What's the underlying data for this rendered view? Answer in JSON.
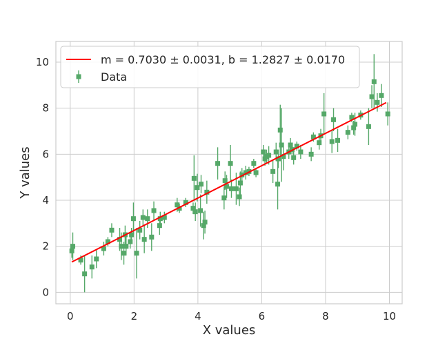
{
  "chart_data": {
    "type": "scatter",
    "xlabel": "X values",
    "ylabel": "Y values",
    "xlim": [
      -0.45,
      10.4
    ],
    "ylim": [
      -0.5,
      10.9
    ],
    "xticks": [
      "0",
      "2",
      "4",
      "6",
      "8",
      "10"
    ],
    "yticks": [
      "0",
      "2",
      "4",
      "6",
      "8",
      "10"
    ],
    "grid": true,
    "legend_placement": "upper-left",
    "colors": {
      "data": "#55a868",
      "fit": "#ff0000",
      "grid": "#cccccc",
      "frame": "#cccccc"
    },
    "fit": {
      "label": "m = 0.7030 ± 0.0031, b = 1.2827 ± 0.0170",
      "slope": 0.703,
      "intercept": 1.2827,
      "x_range": [
        0.05,
        9.9
      ]
    },
    "series": [
      {
        "name": "Data",
        "points": [
          [
            0.05,
            1.8,
            0.3
          ],
          [
            0.08,
            2.0,
            0.6
          ],
          [
            0.33,
            1.4,
            0.2
          ],
          [
            0.45,
            0.8,
            0.8
          ],
          [
            0.68,
            1.1,
            0.5
          ],
          [
            0.82,
            1.45,
            0.4
          ],
          [
            1.05,
            1.9,
            0.3
          ],
          [
            1.18,
            2.2,
            0.2
          ],
          [
            1.3,
            2.7,
            0.3
          ],
          [
            1.55,
            2.3,
            0.5
          ],
          [
            1.6,
            2.0,
            0.6
          ],
          [
            1.68,
            1.7,
            0.5
          ],
          [
            1.72,
            2.5,
            0.4
          ],
          [
            1.75,
            2.0,
            0.4
          ],
          [
            1.88,
            2.2,
            0.3
          ],
          [
            1.92,
            2.5,
            0.3
          ],
          [
            1.98,
            3.2,
            0.7
          ],
          [
            2.08,
            1.7,
            1.1
          ],
          [
            2.18,
            2.7,
            0.4
          ],
          [
            2.28,
            3.25,
            0.35
          ],
          [
            2.32,
            2.3,
            0.6
          ],
          [
            2.42,
            3.2,
            0.4
          ],
          [
            2.55,
            2.4,
            0.6
          ],
          [
            2.62,
            3.55,
            0.4
          ],
          [
            2.8,
            2.9,
            0.4
          ],
          [
            2.82,
            3.2,
            0.3
          ],
          [
            2.95,
            3.25,
            0.25
          ],
          [
            3.35,
            3.8,
            0.3
          ],
          [
            3.42,
            3.65,
            0.2
          ],
          [
            3.62,
            3.9,
            0.2
          ],
          [
            3.85,
            3.65,
            0.25
          ],
          [
            3.88,
            4.95,
            1.0
          ],
          [
            3.92,
            3.5,
            0.4
          ],
          [
            3.98,
            4.55,
            0.6
          ],
          [
            4.08,
            3.55,
            0.7
          ],
          [
            4.1,
            4.7,
            0.4
          ],
          [
            4.18,
            2.9,
            0.6
          ],
          [
            4.22,
            3.05,
            0.5
          ],
          [
            4.28,
            4.35,
            0.5
          ],
          [
            4.62,
            5.6,
            0.7
          ],
          [
            4.82,
            4.1,
            0.5
          ],
          [
            4.85,
            4.85,
            0.4
          ],
          [
            4.9,
            4.6,
            0.5
          ],
          [
            5.02,
            5.6,
            0.8
          ],
          [
            5.05,
            4.5,
            0.4
          ],
          [
            5.2,
            4.5,
            0.7
          ],
          [
            5.3,
            4.15,
            0.4
          ],
          [
            5.33,
            4.75,
            0.5
          ],
          [
            5.38,
            5.1,
            0.3
          ],
          [
            5.5,
            5.2,
            0.3
          ],
          [
            5.6,
            5.25,
            0.2
          ],
          [
            5.75,
            5.6,
            0.2
          ],
          [
            5.82,
            5.2,
            0.2
          ],
          [
            6.05,
            6.1,
            0.3
          ],
          [
            6.1,
            5.8,
            0.3
          ],
          [
            6.15,
            5.9,
            0.3
          ],
          [
            6.22,
            5.95,
            0.4
          ],
          [
            6.35,
            5.25,
            0.5
          ],
          [
            6.45,
            6.1,
            0.4
          ],
          [
            6.5,
            4.7,
            1.1
          ],
          [
            6.52,
            5.8,
            0.4
          ],
          [
            6.58,
            7.05,
            1.1
          ],
          [
            6.62,
            6.4,
            1.6
          ],
          [
            6.68,
            5.9,
            0.6
          ],
          [
            6.85,
            6.1,
            0.3
          ],
          [
            6.9,
            6.4,
            0.3
          ],
          [
            6.95,
            6.2,
            0.2
          ],
          [
            7.0,
            5.85,
            0.3
          ],
          [
            7.1,
            6.35,
            0.2
          ],
          [
            7.22,
            6.1,
            0.3
          ],
          [
            7.55,
            6.0,
            0.3
          ],
          [
            7.62,
            6.75,
            0.2
          ],
          [
            7.8,
            6.5,
            0.3
          ],
          [
            7.85,
            6.8,
            0.3
          ],
          [
            7.95,
            7.75,
            0.9
          ],
          [
            8.2,
            6.55,
            0.5
          ],
          [
            8.25,
            7.5,
            0.5
          ],
          [
            8.38,
            6.6,
            0.5
          ],
          [
            8.7,
            6.95,
            0.3
          ],
          [
            8.82,
            7.6,
            0.2
          ],
          [
            8.88,
            7.15,
            0.3
          ],
          [
            8.92,
            7.3,
            0.5
          ],
          [
            9.1,
            7.7,
            0.2
          ],
          [
            9.35,
            7.2,
            0.8
          ],
          [
            9.45,
            8.5,
            0.5
          ],
          [
            9.52,
            9.15,
            1.2
          ],
          [
            9.62,
            8.25,
            0.4
          ],
          [
            9.75,
            8.55,
            0.5
          ],
          [
            9.95,
            7.75,
            0.5
          ]
        ]
      }
    ]
  }
}
